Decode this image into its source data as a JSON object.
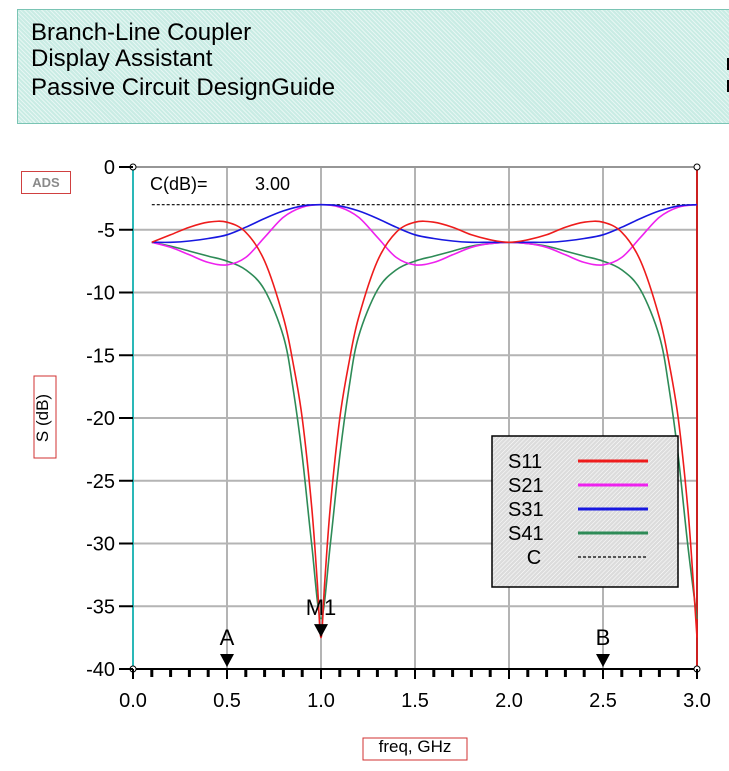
{
  "header": {
    "line1": "Branch-Line Coupler",
    "line2": "Display Assistant",
    "line3": "Passive Circuit DesignGuide"
  },
  "logo_text": "ADS",
  "colors": {
    "S11": "#ee1c1c",
    "S21": "#ee22ee",
    "S31": "#1818e0",
    "S41": "#2e8b57",
    "C": "#000000",
    "title_bg": "#c9ece4",
    "grid": "#b4b4b4"
  },
  "chart_data": {
    "type": "line",
    "xlabel": "freq, GHz",
    "ylabel": "S (dB)",
    "xlim": [
      0.0,
      3.0
    ],
    "ylim": [
      -40,
      0
    ],
    "xticks": [
      "0.0",
      "0.5",
      "1.0",
      "1.5",
      "2.0",
      "2.5",
      "3.0"
    ],
    "yticks": [
      "0",
      "-5",
      "-10",
      "-15",
      "-20",
      "-25",
      "-30",
      "-35",
      "-40"
    ],
    "grid": true,
    "legend_position": "bottom-right",
    "coupling_label": "C(dB)=",
    "coupling_value": "3.00",
    "markers": [
      {
        "label": "A",
        "x": 0.5
      },
      {
        "label": "M1",
        "x": 1.0
      },
      {
        "label": "B",
        "x": 2.5
      }
    ],
    "series": [
      {
        "name": "S11",
        "x": [
          0.1,
          0.2,
          0.3,
          0.4,
          0.5,
          0.6,
          0.7,
          0.8,
          0.85,
          0.9,
          0.95,
          0.98,
          1.0,
          1.02,
          1.05,
          1.1,
          1.15,
          1.2,
          1.3,
          1.4,
          1.5,
          1.6,
          1.7,
          1.8,
          1.9,
          2.0,
          2.1,
          2.2,
          2.3,
          2.4,
          2.5,
          2.6,
          2.7,
          2.8,
          2.85,
          2.9,
          2.95,
          2.98,
          3.0
        ],
        "y": [
          -6.0,
          -5.4,
          -4.8,
          -4.4,
          -4.4,
          -5.2,
          -7.5,
          -12.0,
          -15.5,
          -20.0,
          -27.0,
          -33.0,
          -37.5,
          -33.0,
          -27.0,
          -20.0,
          -15.5,
          -12.0,
          -7.5,
          -5.2,
          -4.4,
          -4.4,
          -4.8,
          -5.4,
          -5.8,
          -6.0,
          -5.8,
          -5.4,
          -4.8,
          -4.4,
          -4.4,
          -5.2,
          -7.5,
          -12.0,
          -15.5,
          -20.0,
          -27.0,
          -33.0,
          -37.5
        ]
      },
      {
        "name": "S21",
        "x": [
          0.1,
          0.2,
          0.3,
          0.4,
          0.5,
          0.6,
          0.7,
          0.8,
          0.9,
          1.0,
          1.1,
          1.2,
          1.3,
          1.4,
          1.5,
          1.6,
          1.7,
          1.8,
          1.9,
          2.0,
          2.1,
          2.2,
          2.3,
          2.4,
          2.5,
          2.6,
          2.7,
          2.8,
          2.9,
          3.0
        ],
        "y": [
          -6.0,
          -6.4,
          -7.0,
          -7.6,
          -7.8,
          -7.2,
          -5.6,
          -4.0,
          -3.2,
          -3.0,
          -3.2,
          -4.0,
          -5.6,
          -7.2,
          -7.8,
          -7.6,
          -7.0,
          -6.4,
          -6.1,
          -6.0,
          -6.1,
          -6.4,
          -7.0,
          -7.6,
          -7.8,
          -7.2,
          -5.6,
          -4.0,
          -3.2,
          -3.0
        ]
      },
      {
        "name": "S31",
        "x": [
          0.1,
          0.2,
          0.3,
          0.4,
          0.5,
          0.6,
          0.7,
          0.8,
          0.9,
          1.0,
          1.1,
          1.2,
          1.3,
          1.4,
          1.5,
          1.6,
          1.7,
          1.8,
          1.9,
          2.0,
          2.1,
          2.2,
          2.3,
          2.4,
          2.5,
          2.6,
          2.7,
          2.8,
          2.9,
          3.0
        ],
        "y": [
          -6.0,
          -6.0,
          -5.9,
          -5.7,
          -5.4,
          -4.8,
          -4.1,
          -3.5,
          -3.1,
          -3.0,
          -3.1,
          -3.5,
          -4.1,
          -4.8,
          -5.4,
          -5.7,
          -5.9,
          -6.0,
          -6.0,
          -6.0,
          -6.0,
          -6.0,
          -5.9,
          -5.7,
          -5.4,
          -4.8,
          -4.1,
          -3.5,
          -3.1,
          -3.0
        ]
      },
      {
        "name": "S41",
        "x": [
          0.1,
          0.2,
          0.3,
          0.4,
          0.5,
          0.6,
          0.7,
          0.8,
          0.85,
          0.9,
          0.95,
          1.0,
          1.05,
          1.1,
          1.15,
          1.2,
          1.3,
          1.4,
          1.5,
          1.6,
          1.7,
          1.8,
          1.9,
          2.0,
          2.1,
          2.2,
          2.3,
          2.4,
          2.5,
          2.6,
          2.7,
          2.8,
          2.85,
          2.9,
          2.95,
          3.0
        ],
        "y": [
          -6.0,
          -6.3,
          -6.7,
          -7.1,
          -7.5,
          -8.2,
          -9.8,
          -13.5,
          -17.5,
          -23.0,
          -30.0,
          -36.0,
          -30.0,
          -23.0,
          -17.5,
          -13.5,
          -9.8,
          -8.2,
          -7.5,
          -7.1,
          -6.7,
          -6.3,
          -6.1,
          -6.0,
          -6.1,
          -6.3,
          -6.7,
          -7.1,
          -7.5,
          -8.2,
          -9.8,
          -13.5,
          -17.5,
          -23.0,
          -30.0,
          -36.0
        ]
      },
      {
        "name": "C",
        "x": [
          0.1,
          3.0
        ],
        "y": [
          -3.0,
          -3.0
        ],
        "dashed": true
      }
    ]
  }
}
